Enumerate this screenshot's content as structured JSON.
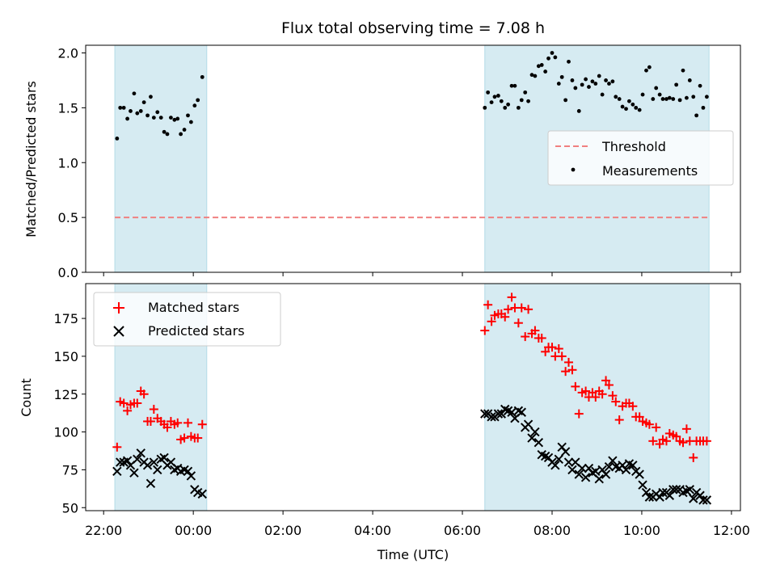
{
  "chart_data": [
    {
      "type": "scatter",
      "title": "Flux total observing time = 7.08 h",
      "xlabel": "",
      "ylabel": "Matched/Predicted stars",
      "xlim": [
        -2.4,
        12.2
      ],
      "ylim": [
        0.0,
        2.07
      ],
      "yticks": [
        0.0,
        0.5,
        1.0,
        1.5,
        2.0
      ],
      "ytick_labels": [
        "0.0",
        "0.5",
        "1.0",
        "1.5",
        "2.0"
      ],
      "shaded_intervals": [
        [
          -1.75,
          0.3
        ],
        [
          6.5,
          11.5
        ]
      ],
      "shade_color": "#add8e6",
      "legend": {
        "position": "center-right",
        "entries": [
          "Threshold",
          "Measurements"
        ]
      },
      "threshold": {
        "name": "Threshold",
        "y": 0.5,
        "x_range": [
          -1.75,
          11.5
        ],
        "color": "#f08080",
        "style": "dashed"
      },
      "series": [
        {
          "name": "Measurements",
          "color": "#000000",
          "marker": "dot",
          "x": [
            -1.7,
            -1.63,
            -1.55,
            -1.47,
            -1.4,
            -1.32,
            -1.25,
            -1.17,
            -1.1,
            -1.02,
            -0.95,
            -0.88,
            -0.8,
            -0.72,
            -0.65,
            -0.58,
            -0.5,
            -0.42,
            -0.35,
            -0.28,
            -0.2,
            -0.12,
            -0.05,
            0.03,
            0.1,
            0.2,
            6.5,
            6.57,
            6.65,
            6.72,
            6.8,
            6.87,
            6.95,
            7.02,
            7.1,
            7.17,
            7.25,
            7.32,
            7.4,
            7.47,
            7.55,
            7.62,
            7.7,
            7.77,
            7.85,
            7.92,
            8.0,
            8.07,
            8.15,
            8.22,
            8.3,
            8.37,
            8.45,
            8.52,
            8.6,
            8.67,
            8.75,
            8.82,
            8.9,
            8.97,
            9.05,
            9.12,
            9.2,
            9.27,
            9.35,
            9.42,
            9.5,
            9.57,
            9.65,
            9.72,
            9.8,
            9.87,
            9.95,
            10.02,
            10.1,
            10.17,
            10.25,
            10.32,
            10.4,
            10.47,
            10.55,
            10.62,
            10.7,
            10.77,
            10.85,
            10.92,
            11.0,
            11.07,
            11.15,
            11.22,
            11.3,
            11.37,
            11.45
          ],
          "y": [
            1.22,
            1.5,
            1.5,
            1.4,
            1.47,
            1.63,
            1.45,
            1.47,
            1.55,
            1.43,
            1.6,
            1.41,
            1.46,
            1.41,
            1.28,
            1.26,
            1.41,
            1.39,
            1.4,
            1.26,
            1.3,
            1.43,
            1.37,
            1.52,
            1.57,
            1.78,
            1.5,
            1.64,
            1.55,
            1.6,
            1.61,
            1.56,
            1.5,
            1.53,
            1.7,
            1.7,
            1.5,
            1.57,
            1.64,
            1.56,
            1.8,
            1.79,
            1.88,
            1.89,
            1.83,
            1.95,
            2.0,
            1.96,
            1.72,
            1.78,
            1.57,
            1.92,
            1.75,
            1.68,
            1.47,
            1.71,
            1.76,
            1.69,
            1.74,
            1.72,
            1.79,
            1.62,
            1.75,
            1.72,
            1.74,
            1.6,
            1.58,
            1.51,
            1.49,
            1.56,
            1.53,
            1.5,
            1.48,
            1.62,
            1.84,
            1.87,
            1.58,
            1.68,
            1.62,
            1.58,
            1.58,
            1.59,
            1.58,
            1.71,
            1.57,
            1.84,
            1.59,
            1.75,
            1.6,
            1.43,
            1.7,
            1.5,
            1.6
          ]
        }
      ]
    },
    {
      "type": "scatter",
      "title": "",
      "xlabel": "Time (UTC)",
      "ylabel": "Count",
      "xlim": [
        -2.4,
        12.2
      ],
      "ylim": [
        48,
        198
      ],
      "yticks": [
        50,
        75,
        100,
        125,
        150,
        175
      ],
      "ytick_labels": [
        "50",
        "75",
        "100",
        "125",
        "150",
        "175"
      ],
      "xticks": [
        -2,
        0,
        2,
        4,
        6,
        8,
        10,
        12
      ],
      "xtick_labels": [
        "22:00",
        "00:00",
        "02:00",
        "04:00",
        "06:00",
        "08:00",
        "10:00",
        "12:00"
      ],
      "shaded_intervals": [
        [
          -1.75,
          0.3
        ],
        [
          6.5,
          11.5
        ]
      ],
      "shade_color": "#add8e6",
      "legend": {
        "position": "top-left",
        "entries": [
          "Matched stars",
          "Predicted stars"
        ]
      },
      "series": [
        {
          "name": "Matched stars",
          "color": "#ff0000",
          "marker": "plus",
          "x": [
            -1.7,
            -1.63,
            -1.55,
            -1.47,
            -1.4,
            -1.32,
            -1.25,
            -1.17,
            -1.1,
            -1.02,
            -0.95,
            -0.88,
            -0.8,
            -0.72,
            -0.65,
            -0.58,
            -0.5,
            -0.42,
            -0.35,
            -0.28,
            -0.2,
            -0.12,
            -0.05,
            0.03,
            0.1,
            0.2,
            6.5,
            6.57,
            6.65,
            6.72,
            6.8,
            6.87,
            6.95,
            7.02,
            7.1,
            7.17,
            7.25,
            7.32,
            7.4,
            7.47,
            7.55,
            7.62,
            7.7,
            7.77,
            7.85,
            7.92,
            8.0,
            8.07,
            8.15,
            8.22,
            8.3,
            8.37,
            8.45,
            8.52,
            8.6,
            8.67,
            8.75,
            8.82,
            8.9,
            8.97,
            9.05,
            9.12,
            9.2,
            9.27,
            9.35,
            9.42,
            9.5,
            9.57,
            9.65,
            9.72,
            9.8,
            9.87,
            9.95,
            10.02,
            10.1,
            10.17,
            10.25,
            10.32,
            10.4,
            10.47,
            10.55,
            10.62,
            10.7,
            10.77,
            10.85,
            10.92,
            11.0,
            11.07,
            11.15,
            11.22,
            11.3,
            11.37,
            11.45
          ],
          "y": [
            90,
            120,
            119,
            114,
            118,
            119,
            119,
            127,
            125,
            107,
            107,
            115,
            109,
            107,
            105,
            103,
            107,
            105,
            106,
            95,
            96,
            106,
            97,
            96,
            96,
            105,
            167,
            184,
            173,
            177,
            178,
            178,
            176,
            181,
            189,
            182,
            172,
            182,
            163,
            181,
            165,
            167,
            162,
            162,
            153,
            156,
            156,
            150,
            155,
            150,
            140,
            146,
            141,
            130,
            112,
            126,
            127,
            123,
            126,
            123,
            127,
            125,
            134,
            131,
            124,
            120,
            108,
            117,
            119,
            119,
            117,
            110,
            110,
            107,
            106,
            105,
            94,
            103,
            92,
            95,
            94,
            99,
            98,
            97,
            94,
            93,
            102,
            94,
            83,
            94,
            94,
            94,
            94
          ]
        },
        {
          "name": "Predicted stars",
          "color": "#000000",
          "marker": "x",
          "x": [
            -1.7,
            -1.63,
            -1.55,
            -1.47,
            -1.4,
            -1.32,
            -1.25,
            -1.17,
            -1.1,
            -1.02,
            -0.95,
            -0.88,
            -0.8,
            -0.72,
            -0.65,
            -0.58,
            -0.5,
            -0.42,
            -0.35,
            -0.28,
            -0.2,
            -0.12,
            -0.05,
            0.03,
            0.1,
            0.2,
            6.5,
            6.57,
            6.65,
            6.72,
            6.8,
            6.87,
            6.95,
            7.02,
            7.1,
            7.17,
            7.25,
            7.32,
            7.4,
            7.47,
            7.55,
            7.62,
            7.7,
            7.77,
            7.85,
            7.92,
            8.0,
            8.07,
            8.15,
            8.22,
            8.3,
            8.37,
            8.45,
            8.52,
            8.6,
            8.67,
            8.75,
            8.82,
            8.9,
            8.97,
            9.05,
            9.12,
            9.2,
            9.27,
            9.35,
            9.42,
            9.5,
            9.57,
            9.65,
            9.72,
            9.8,
            9.87,
            9.95,
            10.02,
            10.1,
            10.17,
            10.25,
            10.32,
            10.4,
            10.47,
            10.55,
            10.62,
            10.7,
            10.77,
            10.85,
            10.92,
            11.0,
            11.07,
            11.15,
            11.22,
            11.3,
            11.37,
            11.45
          ],
          "y": [
            74,
            80,
            80,
            81,
            78,
            73,
            82,
            86,
            80,
            78,
            66,
            80,
            75,
            82,
            83,
            78,
            80,
            75,
            76,
            74,
            75,
            74,
            71,
            62,
            60,
            59,
            112,
            112,
            110,
            110,
            112,
            112,
            115,
            114,
            113,
            109,
            114,
            113,
            103,
            105,
            96,
            100,
            93,
            85,
            84,
            83,
            80,
            78,
            82,
            90,
            87,
            80,
            75,
            80,
            72,
            76,
            70,
            76,
            73,
            74,
            69,
            75,
            72,
            77,
            81,
            77,
            76,
            78,
            75,
            79,
            78,
            74,
            72,
            65,
            60,
            57,
            57,
            59,
            57,
            60,
            60,
            58,
            62,
            62,
            62,
            60,
            61,
            62,
            56,
            60,
            58,
            55,
            55
          ]
        }
      ]
    }
  ]
}
